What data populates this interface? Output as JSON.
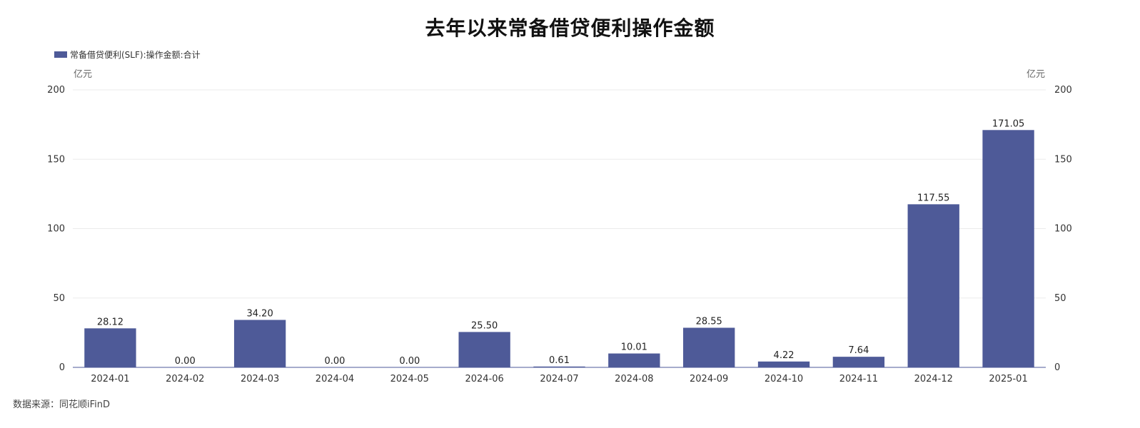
{
  "chart_data": {
    "type": "bar",
    "title": "去年以来常备借贷便利操作金额",
    "categories": [
      "2024-01",
      "2024-02",
      "2024-03",
      "2024-04",
      "2024-05",
      "2024-06",
      "2024-07",
      "2024-08",
      "2024-09",
      "2024-10",
      "2024-11",
      "2024-12",
      "2025-01"
    ],
    "series": [
      {
        "name": "常备借贷便利(SLF):操作金额:合计",
        "values": [
          28.12,
          0.0,
          34.2,
          0.0,
          0.0,
          25.5,
          0.61,
          10.01,
          28.55,
          4.22,
          7.64,
          117.55,
          171.05
        ],
        "labels": [
          "28.12",
          "0.00",
          "34.20",
          "0.00",
          "0.00",
          "25.50",
          "0.61",
          "10.01",
          "28.55",
          "4.22",
          "7.64",
          "117.55",
          "171.05"
        ],
        "color": "#4e5a98"
      }
    ],
    "ylabel_left": "亿元",
    "ylabel_right": "亿元",
    "ylim": [
      0,
      200
    ],
    "yticks": [
      0,
      50,
      100,
      150,
      200
    ],
    "ytick_labels": [
      "0",
      "50",
      "100",
      "150",
      "200"
    ],
    "grid": true,
    "legend_position": "top-left"
  },
  "source": "数据来源：同花顺iFinD",
  "colors": {
    "bar": "#4e5a98",
    "grid": "#ebebeb",
    "axis": "#4e5a98"
  }
}
